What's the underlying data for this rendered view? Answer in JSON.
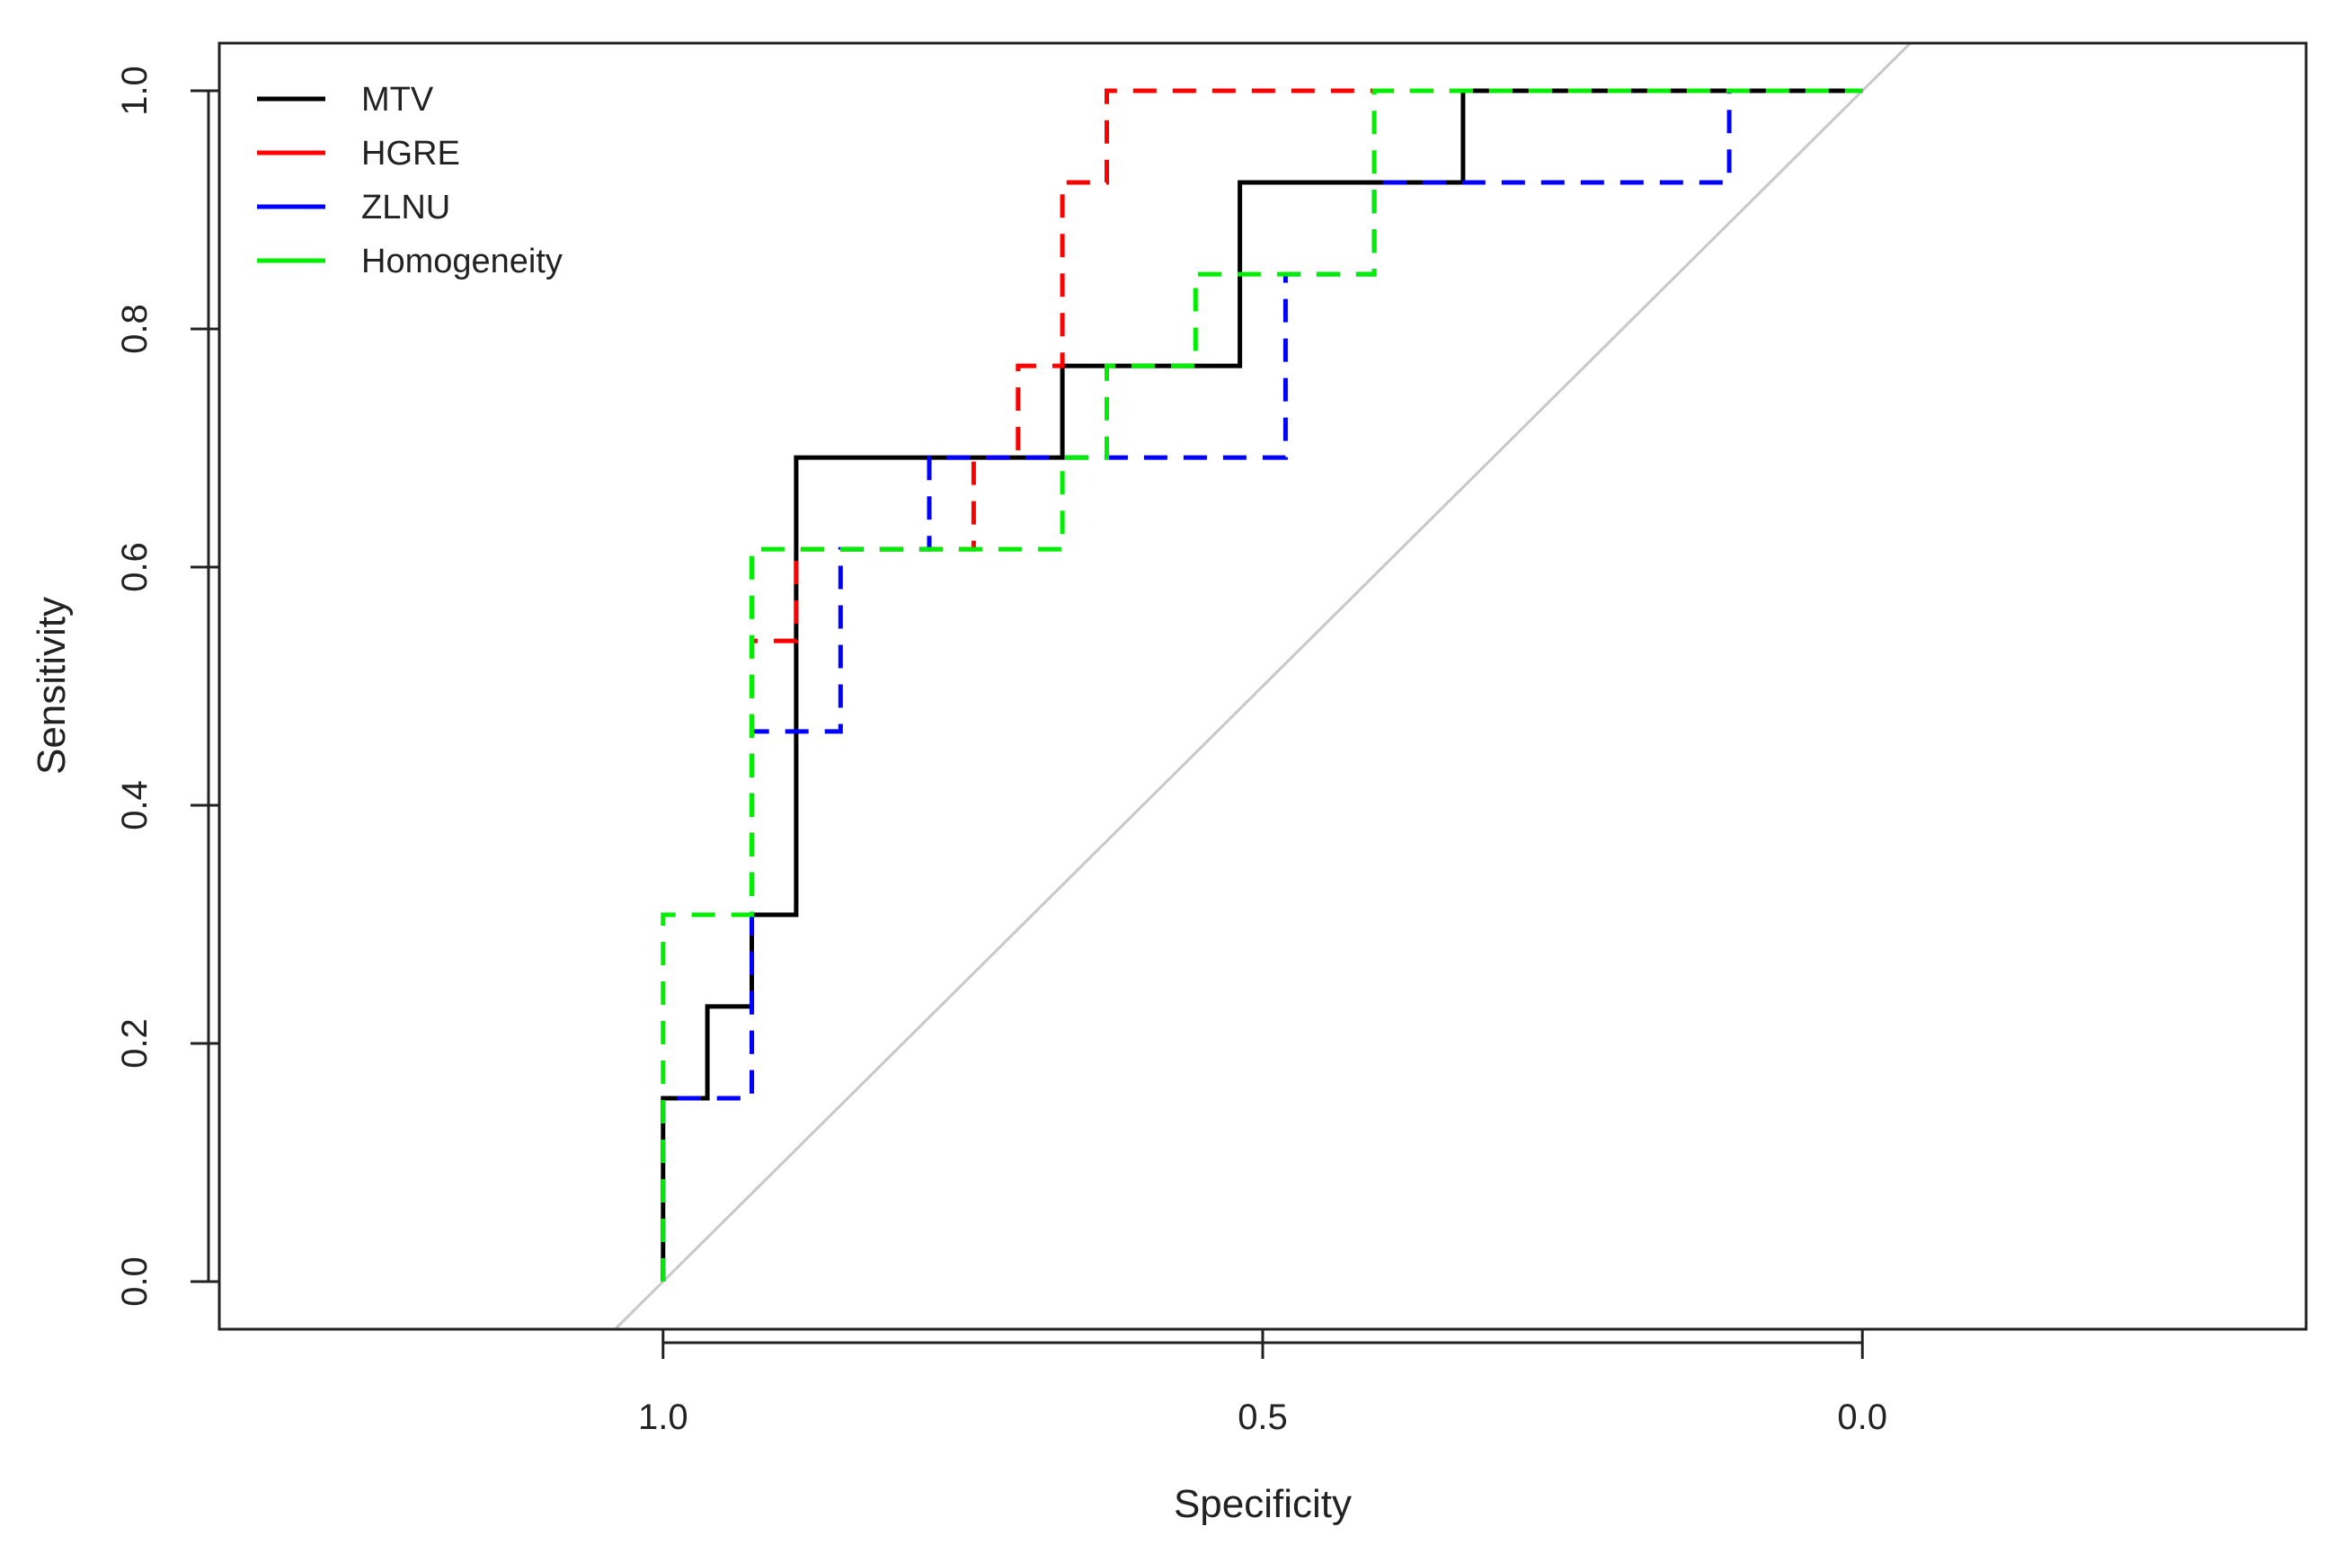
{
  "chart_data": {
    "type": "line",
    "title": "",
    "xlabel": "Specificity",
    "ylabel": "Sensitivity",
    "xlim": [
      1.37,
      -0.37
    ],
    "ylim": [
      -0.04,
      1.04
    ],
    "x_reversed": true,
    "x_ticks": [
      1.0,
      0.5,
      0.0
    ],
    "x_tick_labels": [
      "1.0",
      "0.5",
      "0.0"
    ],
    "y_ticks": [
      0.0,
      0.2,
      0.4,
      0.6,
      0.8,
      1.0
    ],
    "y_tick_labels": [
      "0.0",
      "0.2",
      "0.4",
      "0.6",
      "0.8",
      "1.0"
    ],
    "legend_position": "top-left",
    "reference_line": {
      "name": "chance",
      "color": "#c8c8c8",
      "points": [
        [
          1.04,
          -0.04
        ],
        [
          -0.04,
          1.04
        ]
      ]
    },
    "series": [
      {
        "name": "MTV",
        "color": "#000000",
        "dashed": false,
        "points": [
          [
            1.0,
            0.0
          ],
          [
            1.0,
            0.154
          ],
          [
            0.963,
            0.154
          ],
          [
            0.963,
            0.231
          ],
          [
            0.926,
            0.231
          ],
          [
            0.926,
            0.308
          ],
          [
            0.889,
            0.308
          ],
          [
            0.889,
            0.692
          ],
          [
            0.667,
            0.692
          ],
          [
            0.667,
            0.769
          ],
          [
            0.519,
            0.769
          ],
          [
            0.519,
            0.923
          ],
          [
            0.333,
            0.923
          ],
          [
            0.333,
            1.0
          ],
          [
            0.0,
            1.0
          ]
        ]
      },
      {
        "name": "HGRE",
        "color": "#ff0000",
        "dashed": true,
        "points": [
          [
            1.0,
            0.0
          ],
          [
            1.0,
            0.154
          ],
          [
            0.926,
            0.154
          ],
          [
            0.926,
            0.538
          ],
          [
            0.889,
            0.538
          ],
          [
            0.889,
            0.615
          ],
          [
            0.741,
            0.615
          ],
          [
            0.741,
            0.692
          ],
          [
            0.704,
            0.692
          ],
          [
            0.704,
            0.769
          ],
          [
            0.667,
            0.769
          ],
          [
            0.667,
            0.923
          ],
          [
            0.63,
            0.923
          ],
          [
            0.63,
            1.0
          ],
          [
            0.0,
            1.0
          ]
        ]
      },
      {
        "name": "ZLNU",
        "color": "#0000ff",
        "dashed": true,
        "points": [
          [
            1.0,
            0.0
          ],
          [
            1.0,
            0.154
          ],
          [
            0.926,
            0.154
          ],
          [
            0.926,
            0.462
          ],
          [
            0.852,
            0.462
          ],
          [
            0.852,
            0.615
          ],
          [
            0.778,
            0.615
          ],
          [
            0.778,
            0.692
          ],
          [
            0.481,
            0.692
          ],
          [
            0.481,
            0.846
          ],
          [
            0.407,
            0.846
          ],
          [
            0.407,
            0.923
          ],
          [
            0.111,
            0.923
          ],
          [
            0.111,
            1.0
          ],
          [
            0.0,
            1.0
          ]
        ]
      },
      {
        "name": "Homogeneity",
        "color": "#00ee00",
        "dashed": true,
        "points": [
          [
            1.0,
            0.0
          ],
          [
            1.0,
            0.308
          ],
          [
            0.926,
            0.308
          ],
          [
            0.926,
            0.615
          ],
          [
            0.667,
            0.615
          ],
          [
            0.667,
            0.692
          ],
          [
            0.63,
            0.692
          ],
          [
            0.63,
            0.769
          ],
          [
            0.556,
            0.769
          ],
          [
            0.556,
            0.846
          ],
          [
            0.407,
            0.846
          ],
          [
            0.407,
            1.0
          ],
          [
            0.0,
            1.0
          ]
        ]
      }
    ]
  }
}
